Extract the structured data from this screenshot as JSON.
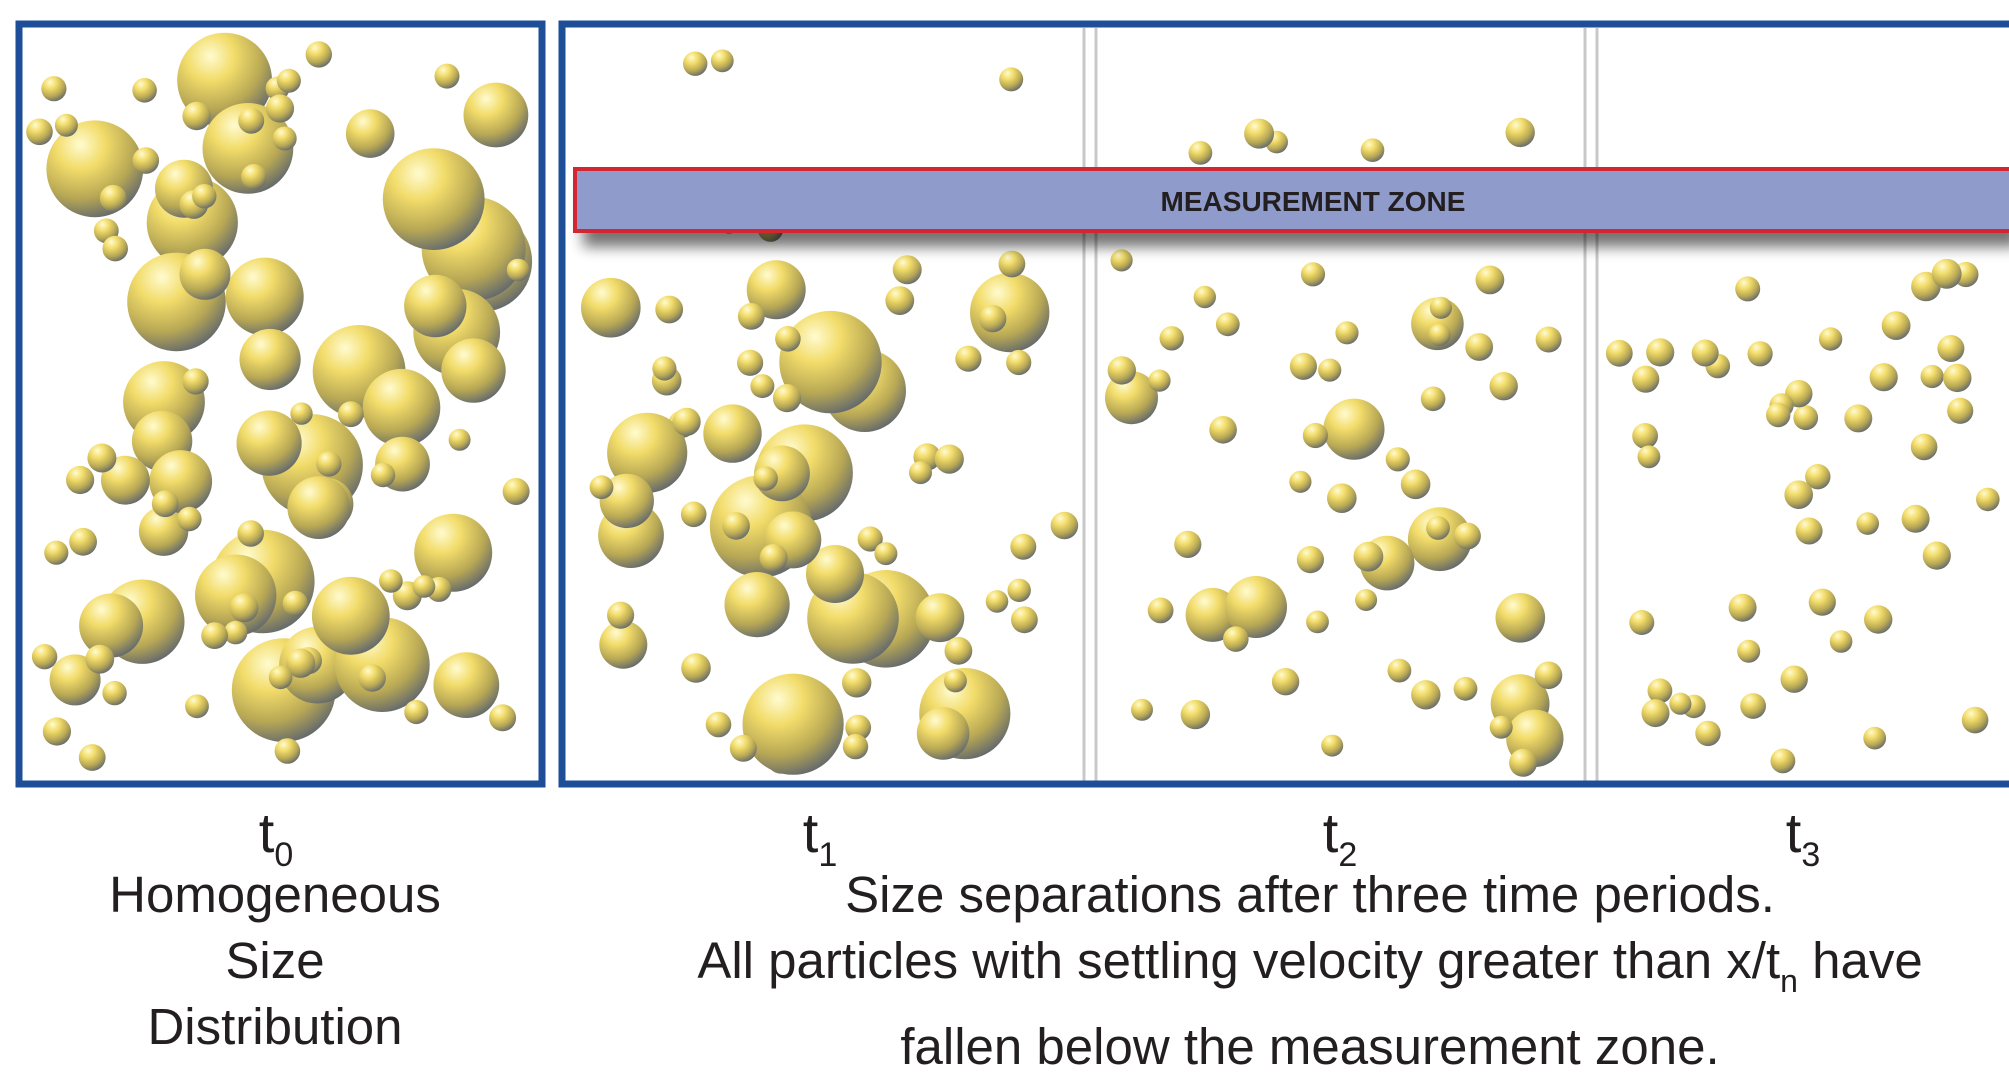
{
  "zone_label": "MEASUREMENT ZONE",
  "time_labels": [
    {
      "base": "t",
      "sub": "0"
    },
    {
      "base": "t",
      "sub": "1"
    },
    {
      "base": "t",
      "sub": "2"
    },
    {
      "base": "t",
      "sub": "3"
    }
  ],
  "caption_left": [
    "Homogeneous",
    "Size",
    "Distribution"
  ],
  "caption_right": {
    "line1": "Size separations after three time periods.",
    "line2_pre": "All particles with settling velocity greater than x/t",
    "line2_sub": "n",
    "line2_post": " have",
    "line3": "fallen below the measurement zone."
  },
  "colors": {
    "frame": "#1f4e99",
    "divider": "#c8c8c8",
    "zone_fill": "#8e9bcb",
    "zone_border": "#d22630",
    "particle_light": "#fff3a8",
    "particle_mid": "#e7cf55",
    "particle_dark": "#4f5a72"
  }
}
